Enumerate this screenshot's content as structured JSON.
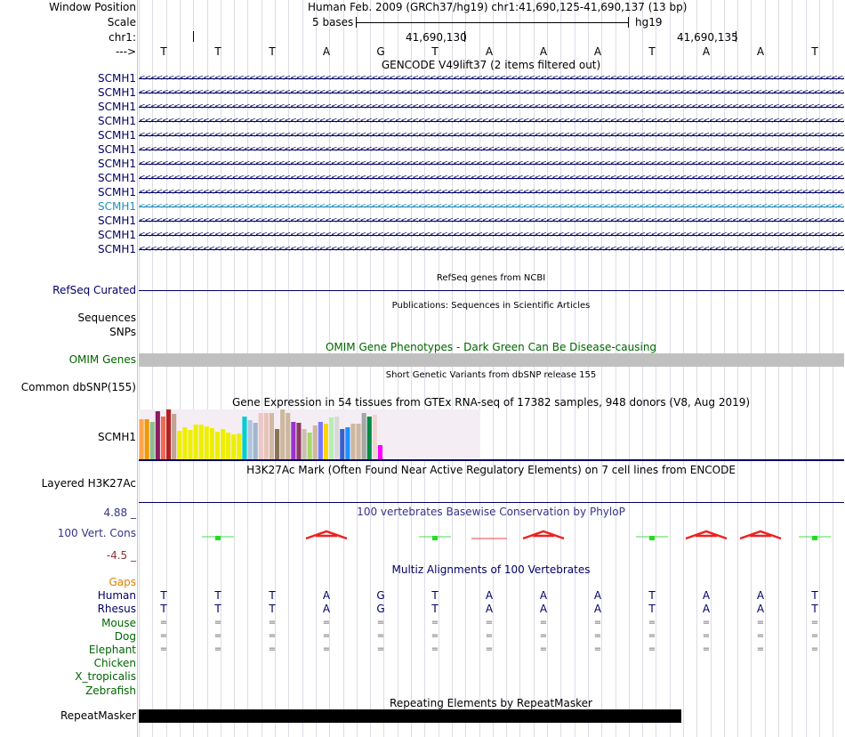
{
  "header": {
    "window_position_label": "Window Position",
    "position_text": "Human Feb. 2009 (GRCh37/hg19)   chr1:41,690,125-41,690,137 (13 bp)",
    "scale_label": "Scale",
    "scale_value": "5 bases",
    "assembly": "hg19",
    "chrom_label": "chr1:",
    "coord1": "41,690,130",
    "coord2": "41,690,135",
    "strand_label": "--->"
  },
  "bases": [
    "T",
    "T",
    "T",
    "A",
    "G",
    "T",
    "A",
    "A",
    "A",
    "T",
    "A",
    "A",
    "T"
  ],
  "gencode": {
    "title": "GENCODE V49lift37 (2 items filtered out)",
    "rows": [
      "SCMH1",
      "SCMH1",
      "SCMH1",
      "SCMH1",
      "SCMH1",
      "SCMH1",
      "SCMH1",
      "SCMH1",
      "SCMH1",
      "SCMH1",
      "SCMH1",
      "SCMH1",
      "SCMH1"
    ],
    "highlight_index": 9,
    "color": "#000066",
    "highlight_color": "#1d8fb8"
  },
  "refseq": {
    "title": "RefSeq genes from NCBI",
    "label": "RefSeq Curated"
  },
  "publications": {
    "title": "Publications: Sequences in Scientific Articles",
    "label1": "Sequences",
    "label2": "SNPs"
  },
  "omim": {
    "title": "OMIM Gene Phenotypes - Dark Green Can Be Disease-causing",
    "label": "OMIM Genes",
    "bar_color": "#c0c0c0"
  },
  "dbsnp": {
    "title": "Short Genetic Variants from dbSNP release 155",
    "label": "Common dbSNP(155)"
  },
  "gtex": {
    "title": "Gene Expression in 54 tissues from GTEx RNA-seq of 17382 samples, 948 donors (V8, Aug 2019)",
    "label": "SCMH1",
    "max": 56,
    "bars": [
      {
        "v": 45,
        "c": "#ffa54f"
      },
      {
        "v": 45,
        "c": "#ee9a00"
      },
      {
        "v": 42,
        "c": "#8fbc8f"
      },
      {
        "v": 54,
        "c": "#8b1c62"
      },
      {
        "v": 48,
        "c": "#ee6a50"
      },
      {
        "v": 56,
        "c": "#b22222"
      },
      {
        "v": 51,
        "c": "#c1a393"
      },
      {
        "v": 32,
        "c": "#eeee00"
      },
      {
        "v": 36,
        "c": "#eeee00"
      },
      {
        "v": 33,
        "c": "#eeee00"
      },
      {
        "v": 39,
        "c": "#eeee00"
      },
      {
        "v": 39,
        "c": "#eeee00"
      },
      {
        "v": 37,
        "c": "#eeee00"
      },
      {
        "v": 35,
        "c": "#eeee00"
      },
      {
        "v": 31,
        "c": "#eeee00"
      },
      {
        "v": 34,
        "c": "#eeee00"
      },
      {
        "v": 30,
        "c": "#eeee00"
      },
      {
        "v": 28,
        "c": "#eeee00"
      },
      {
        "v": 29,
        "c": "#eeee00"
      },
      {
        "v": 48,
        "c": "#00ced1"
      },
      {
        "v": 44,
        "c": "#b0c4de"
      },
      {
        "v": 41,
        "c": "#9fb6cd"
      },
      {
        "v": 52,
        "c": "#ebc7c7"
      },
      {
        "v": 52,
        "c": "#e8c3b8"
      },
      {
        "v": 52,
        "c": "#d2b9a5"
      },
      {
        "v": 34,
        "c": "#8b7355"
      },
      {
        "v": 56,
        "c": "#cdb79e"
      },
      {
        "v": 52,
        "c": "#cdb79e"
      },
      {
        "v": 42,
        "c": "#9a32cd"
      },
      {
        "v": 41,
        "c": "#8b3a62"
      },
      {
        "v": 34,
        "c": "#cdbfb0"
      },
      {
        "v": 30,
        "c": "#a6d96a"
      },
      {
        "v": 38,
        "c": "#cdb79e"
      },
      {
        "v": 42,
        "c": "#7777ff"
      },
      {
        "v": 40,
        "c": "#ffd700"
      },
      {
        "v": 47,
        "c": "#b4eeb4"
      },
      {
        "v": 48,
        "c": "#d9d9d9"
      },
      {
        "v": 34,
        "c": "#3a5fcd"
      },
      {
        "v": 36,
        "c": "#1e90ff"
      },
      {
        "v": 40,
        "c": "#cdb79e"
      },
      {
        "v": 40,
        "c": "#cdb79e"
      },
      {
        "v": 52,
        "c": "#a6a6a6"
      },
      {
        "v": 48,
        "c": "#008b45"
      },
      {
        "v": 50,
        "c": "#eed5d2"
      },
      {
        "v": 16,
        "c": "#ff00ff"
      }
    ]
  },
  "h3k27ac": {
    "title": "H3K27Ac Mark (Often Found Near Active Regulatory Elements) on 7 cell lines from ENCODE",
    "label": "Layered H3K27Ac"
  },
  "phylop": {
    "title": "100 vertebrates Basewise Conservation by PhyloP",
    "label": "100 Vert. Cons",
    "max_label": "4.88 _",
    "min_label": "-4.5 _",
    "scores": [
      0,
      0.6,
      0,
      -2.2,
      0,
      0.6,
      -0.1,
      -2.2,
      0,
      0.6,
      -2.2,
      -2.2,
      0.6
    ]
  },
  "multiz": {
    "title": "Multiz Alignments of 100 Vertebrates",
    "species": [
      {
        "name": "Gaps",
        "color": "#e08000",
        "row": ""
      },
      {
        "name": "Human",
        "color": "#000066",
        "row": "bases"
      },
      {
        "name": "Rhesus",
        "color": "#000066",
        "row": "bases"
      },
      {
        "name": "Mouse",
        "color": "#006600",
        "row": "="
      },
      {
        "name": "Dog",
        "color": "#006600",
        "row": "="
      },
      {
        "name": "Elephant",
        "color": "#006600",
        "row": "="
      },
      {
        "name": "Chicken",
        "color": "#006600",
        "row": ""
      },
      {
        "name": "X_tropicalis",
        "color": "#006600",
        "row": ""
      },
      {
        "name": "Zebrafish",
        "color": "#006600",
        "row": ""
      }
    ]
  },
  "repeatmasker": {
    "title": "Repeating Elements by RepeatMasker",
    "label": "RepeatMasker",
    "coverage_bases": 10
  }
}
